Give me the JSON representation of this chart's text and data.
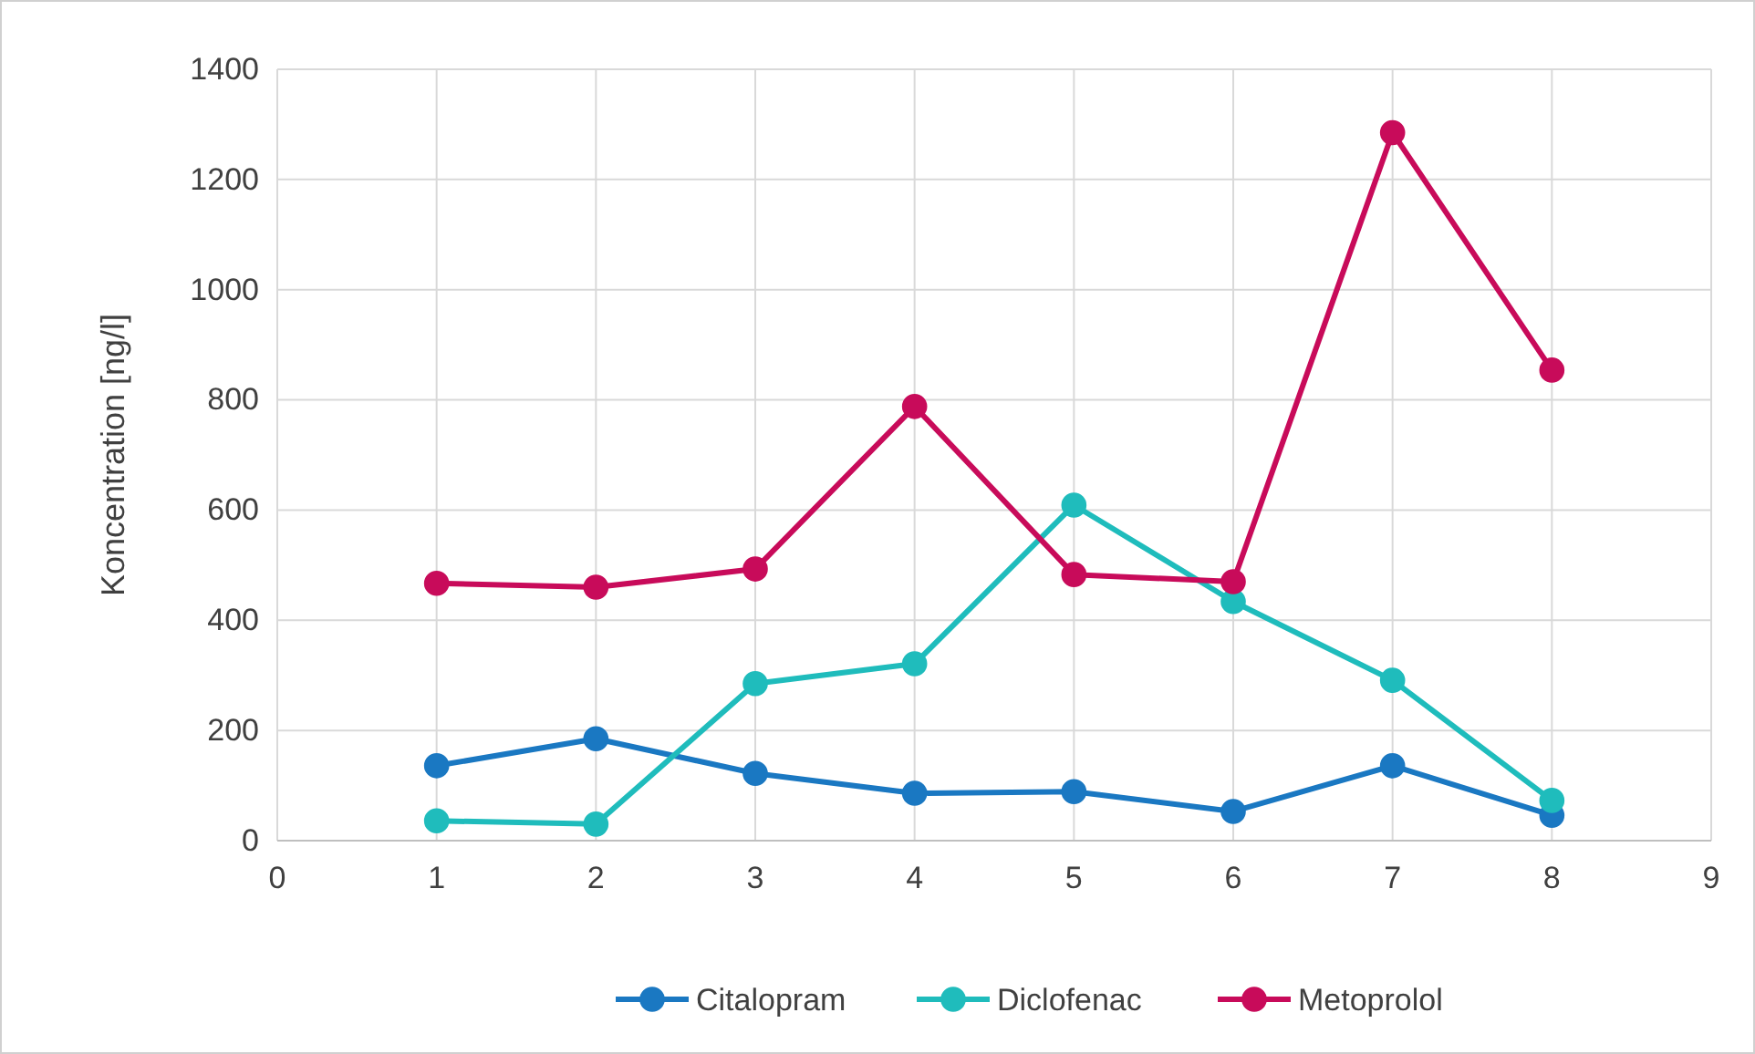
{
  "chart_data": {
    "type": "line",
    "ylabel": "Koncentration [ng/l]",
    "x": [
      1,
      2,
      3,
      4,
      5,
      6,
      7,
      8
    ],
    "xlim": [
      0,
      9
    ],
    "xticks": [
      0,
      1,
      2,
      3,
      4,
      5,
      6,
      7,
      8,
      9
    ],
    "ylim": [
      0,
      1400
    ],
    "yticks": [
      0,
      200,
      400,
      600,
      800,
      1000,
      1200,
      1400
    ],
    "grid": true,
    "legend": "bottom",
    "marker": "circle",
    "line_style": "solid",
    "series": [
      {
        "name": "Citalopram",
        "color": "#1a78c2",
        "values": [
          136,
          185,
          122,
          86,
          89,
          53,
          136,
          46
        ]
      },
      {
        "name": "Diclofenac",
        "color": "#1fbcbc",
        "values": [
          36,
          30,
          285,
          321,
          609,
          434,
          291,
          73
        ]
      },
      {
        "name": "Metoprolol",
        "color": "#c80b5a",
        "values": [
          467,
          460,
          493,
          788,
          483,
          470,
          1285,
          854
        ]
      }
    ]
  }
}
